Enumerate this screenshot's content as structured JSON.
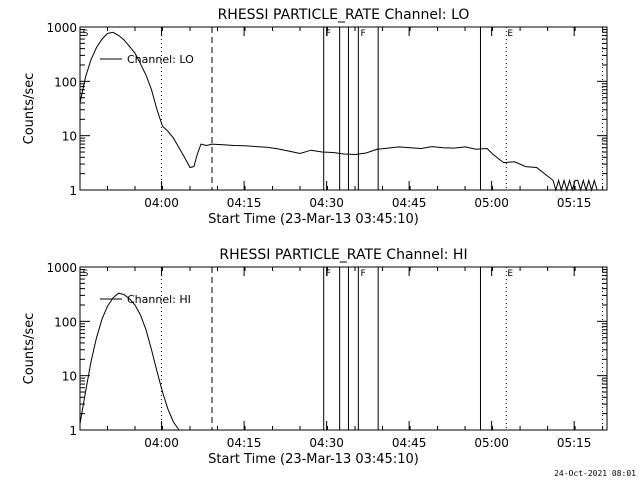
{
  "footer_timestamp": "24-Oct-2021 08:01",
  "chart_data": [
    {
      "type": "line",
      "title": "RHESSI PARTICLE_RATE Channel: LO",
      "xlabel": "Start Time (23-Mar-13 03:45:10)",
      "ylabel": "Counts/sec",
      "yscale": "log",
      "ylim": [
        1,
        1000
      ],
      "xlim_min": [
        0,
        95.8
      ],
      "xtick_labels": [
        {
          "label": "04:00",
          "min": 14.83
        },
        {
          "label": "04:15",
          "min": 29.83
        },
        {
          "label": "04:30",
          "min": 44.83
        },
        {
          "label": "04:45",
          "min": 59.83
        },
        {
          "label": "05:00",
          "min": 74.83
        },
        {
          "label": "05:15",
          "min": 89.83
        }
      ],
      "ytick_labels": [
        "1",
        "10",
        "100",
        "1000"
      ],
      "legend": "Channel: LO",
      "series": [
        {
          "name": "Channel: LO",
          "x": [
            0,
            1,
            2,
            3,
            4,
            5,
            6,
            7,
            8,
            9,
            10,
            11,
            12,
            13,
            14,
            15,
            16,
            17,
            18,
            19,
            20,
            20.7,
            21.3,
            22,
            23,
            24,
            26,
            28,
            30,
            32,
            34,
            36,
            38,
            40,
            42,
            44,
            46,
            48,
            50,
            52,
            54,
            56,
            58,
            60,
            62,
            64,
            66,
            68,
            70,
            72,
            74,
            75,
            77,
            79,
            81,
            83,
            85,
            86,
            86.5,
            87,
            87.5,
            88,
            88.5,
            89,
            89.5,
            90,
            90.5,
            91,
            91.5,
            92,
            92.5,
            93,
            93.5,
            94
          ],
          "y": [
            40,
            120,
            250,
            420,
            600,
            760,
            800,
            700,
            580,
            440,
            330,
            210,
            130,
            70,
            30,
            15,
            12,
            9,
            6,
            4,
            2.6,
            2.7,
            4.5,
            7,
            6.6,
            7,
            6.8,
            6.6,
            6.5,
            6.3,
            6.1,
            5.7,
            5.2,
            4.7,
            5.4,
            5.0,
            4.9,
            4.6,
            4.5,
            4.8,
            5.6,
            5.9,
            6.2,
            6.0,
            5.8,
            6.3,
            6.0,
            5.9,
            6.2,
            5.6,
            5.8,
            4.6,
            3.2,
            3.3,
            2.7,
            2.6,
            1.8,
            1.5,
            1.0,
            1.5,
            1.0,
            1.5,
            1.0,
            1.5,
            1.0,
            1.5,
            1.5,
            1.0,
            1.5,
            1.0,
            1.5,
            1.0,
            1.5,
            1.0
          ]
        }
      ],
      "annotations": [
        {
          "text": "S",
          "min": 0.3
        },
        {
          "text": "F",
          "min": 44.5
        },
        {
          "text": "F",
          "min": 50.8
        },
        {
          "text": "E",
          "min": 77.5
        }
      ],
      "vlines": [
        {
          "min": 14.8,
          "style": "dotted"
        },
        {
          "min": 24.0,
          "style": "dashed"
        },
        {
          "min": 44.3,
          "style": "solid"
        },
        {
          "min": 47.2,
          "style": "solid"
        },
        {
          "min": 48.8,
          "style": "solid"
        },
        {
          "min": 50.6,
          "style": "solid"
        },
        {
          "min": 54.2,
          "style": "solid"
        },
        {
          "min": 72.8,
          "style": "solid"
        },
        {
          "min": 77.5,
          "style": "dotted"
        },
        {
          "min": 95.0,
          "style": "dotted"
        }
      ]
    },
    {
      "type": "line",
      "title": "RHESSI PARTICLE_RATE Channel: HI",
      "xlabel": "Start Time (23-Mar-13 03:45:10)",
      "ylabel": "Counts/sec",
      "yscale": "log",
      "ylim": [
        1,
        1000
      ],
      "xlim_min": [
        0,
        95.8
      ],
      "xtick_labels": [
        {
          "label": "04:00",
          "min": 14.83
        },
        {
          "label": "04:15",
          "min": 29.83
        },
        {
          "label": "04:30",
          "min": 44.83
        },
        {
          "label": "04:45",
          "min": 59.83
        },
        {
          "label": "05:00",
          "min": 74.83
        },
        {
          "label": "05:15",
          "min": 89.83
        }
      ],
      "ytick_labels": [
        "1",
        "10",
        "100",
        "1000"
      ],
      "legend": "Channel: HI",
      "series": [
        {
          "name": "Channel: HI",
          "x": [
            0,
            1,
            2,
            3,
            4,
            5,
            6,
            7,
            8,
            9,
            10,
            11,
            12,
            13,
            14,
            15,
            16,
            17,
            18
          ],
          "y": [
            1.3,
            5,
            18,
            50,
            110,
            190,
            270,
            330,
            310,
            260,
            200,
            130,
            70,
            30,
            12,
            5,
            2.4,
            1.4,
            1.0
          ]
        }
      ],
      "annotations": [
        {
          "text": "S",
          "min": 0.3
        },
        {
          "text": "F",
          "min": 44.5
        },
        {
          "text": "F",
          "min": 50.8
        },
        {
          "text": "E",
          "min": 77.5
        }
      ],
      "vlines": [
        {
          "min": 14.8,
          "style": "dotted"
        },
        {
          "min": 24.0,
          "style": "dashed"
        },
        {
          "min": 44.3,
          "style": "solid"
        },
        {
          "min": 47.2,
          "style": "solid"
        },
        {
          "min": 48.8,
          "style": "solid"
        },
        {
          "min": 50.6,
          "style": "solid"
        },
        {
          "min": 54.2,
          "style": "solid"
        },
        {
          "min": 72.8,
          "style": "solid"
        },
        {
          "min": 77.5,
          "style": "dotted"
        },
        {
          "min": 95.0,
          "style": "dotted"
        }
      ]
    }
  ]
}
